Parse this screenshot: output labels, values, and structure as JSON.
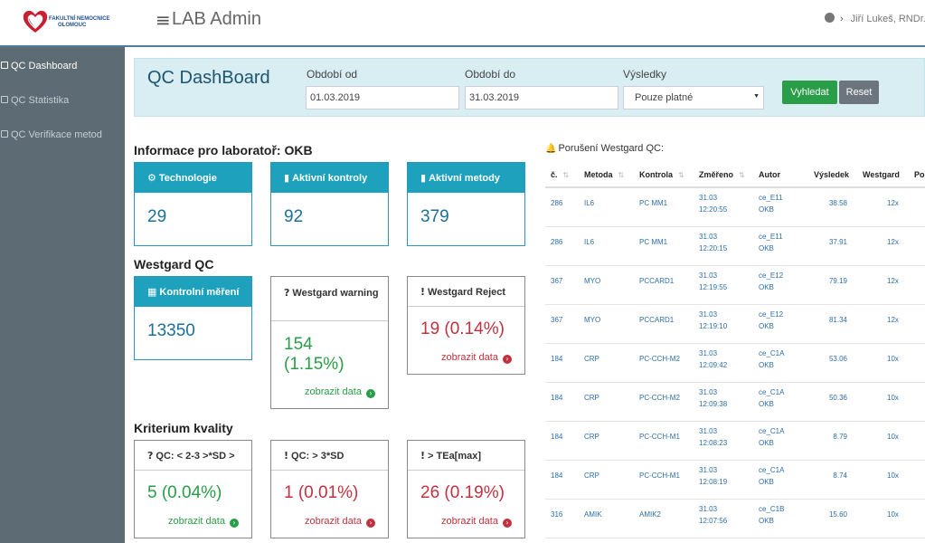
{
  "header": {
    "logo_text_1": "FAKULTNÍ NEMOCNICE",
    "logo_text_2": "OLOMOUC",
    "menu_glyph": "≡",
    "app_title": "LAB Admin",
    "user_name": "Jiří Lukeš, RNDr.",
    "icons": [
      "user-icon",
      "chevron-right-icon",
      "menu-icon"
    ]
  },
  "sidebar": {
    "items": [
      {
        "label": "QC Dashboard",
        "active": true
      },
      {
        "label": "QC Statistika",
        "active": false
      },
      {
        "label": "QC Verifikace metod",
        "active": false
      }
    ]
  },
  "filter": {
    "title": "QC DashBoard",
    "from_label": "Období od",
    "from_value": "01.03.2019",
    "to_label": "Období do",
    "to_value": "31.03.2019",
    "results_label": "Výsledky",
    "results_value": "Pouze platné",
    "search_button": "Vyhledat",
    "reset_button": "Reset"
  },
  "lab_info": {
    "title": "Informace pro laboratoř: OKB",
    "cards": [
      {
        "label": "Technologie",
        "value": "29",
        "icon": "gear-icon"
      },
      {
        "label": "Aktivní kontroly",
        "value": "92",
        "icon": "clipboard-icon"
      },
      {
        "label": "Aktivní metody",
        "value": "379",
        "icon": "clipboard-icon"
      }
    ]
  },
  "westgard": {
    "title": "Westgard QC",
    "control": {
      "label": "Kontrolní měření",
      "value": "13350",
      "icon": "table-icon"
    },
    "warning": {
      "label": "Westgard warning",
      "value": "154 (1.15%)",
      "link": "zobrazit data",
      "icon": "question-icon"
    },
    "reject": {
      "label": "Westgard Reject",
      "value": "19 (0.14%)",
      "link": "zobrazit data",
      "icon": "exclamation-icon"
    }
  },
  "quality": {
    "title": "Kriterium kvality",
    "cards": [
      {
        "label": "QC: < 2-3 >*SD >",
        "value": "5 (0.04%)",
        "link": "zobrazit data",
        "icon": "question-icon"
      },
      {
        "label": "QC: > 3*SD",
        "value": "1 (0.01%)",
        "link": "zobrazit data",
        "icon": "exclamation-icon"
      },
      {
        "label": "> TEa[max]",
        "value": "26 (0.19%)",
        "link": "zobrazit data",
        "icon": "exclamation-icon"
      }
    ]
  },
  "violations": {
    "title": "Porušení Westgard QC:",
    "columns": [
      "č.",
      "Metoda",
      "Kontrola",
      "Změřeno",
      "Autor",
      "Výsledek",
      "Westgard",
      "Po"
    ],
    "rows": [
      {
        "id": "286",
        "method": "IL6",
        "control": "PC MM1",
        "date": "31.03",
        "time": "12:20:55",
        "author": "ce_E11",
        "author2": "OKB",
        "result": "38.58",
        "westgard": "12x"
      },
      {
        "id": "286",
        "method": "IL6",
        "control": "PC MM1",
        "date": "31.03",
        "time": "12:20:15",
        "author": "ce_E11",
        "author2": "OKB",
        "result": "37.91",
        "westgard": "12x"
      },
      {
        "id": "367",
        "method": "MYO",
        "control": "PCCARD1",
        "date": "31.03",
        "time": "12:19:55",
        "author": "ce_E12",
        "author2": "OKB",
        "result": "79.19",
        "westgard": "12x"
      },
      {
        "id": "367",
        "method": "MYO",
        "control": "PCCARD1",
        "date": "31.03",
        "time": "12:19:10",
        "author": "ce_E12",
        "author2": "OKB",
        "result": "81.34",
        "westgard": "12x"
      },
      {
        "id": "184",
        "method": "CRP",
        "control": "PC-CCH-M2",
        "date": "31.03",
        "time": "12:09:42",
        "author": "ce_C1A",
        "author2": "OKB",
        "result": "53.06",
        "westgard": "10x"
      },
      {
        "id": "184",
        "method": "CRP",
        "control": "PC-CCH-M2",
        "date": "31.03",
        "time": "12:09:38",
        "author": "ce_C1A",
        "author2": "OKB",
        "result": "50.36",
        "westgard": "10x"
      },
      {
        "id": "184",
        "method": "CRP",
        "control": "PC-CCH-M1",
        "date": "31.03",
        "time": "12:08:23",
        "author": "ce_C1A",
        "author2": "OKB",
        "result": "8.79",
        "westgard": "10x"
      },
      {
        "id": "184",
        "method": "CRP",
        "control": "PC-CCH-M1",
        "date": "31.03",
        "time": "12:08:19",
        "author": "ce_C1A",
        "author2": "OKB",
        "result": "8.74",
        "westgard": "10x"
      },
      {
        "id": "316",
        "method": "AMIK",
        "control": "AMIK2",
        "date": "31.03",
        "time": "12:07:56",
        "author": "ce_C1B",
        "author2": "OKB",
        "result": "15.60",
        "westgard": "10x"
      }
    ]
  },
  "colors": {
    "accent": "#1ea1bd",
    "success": "#2a9d48",
    "danger": "#c0323f",
    "sidebar": "#5d6b74"
  }
}
